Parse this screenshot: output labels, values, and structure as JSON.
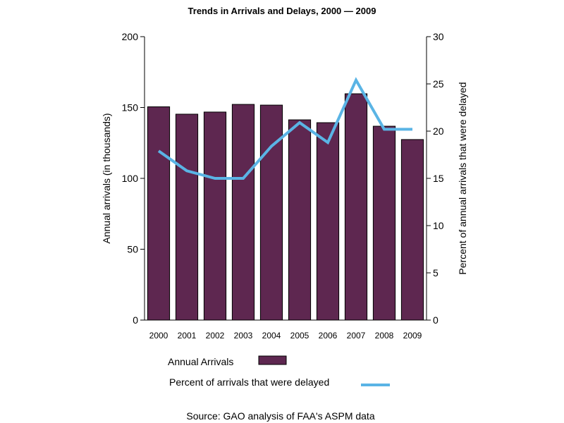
{
  "chart_data": {
    "type": "bar",
    "title": "Trends in Arrivals and Delays, 2000 — 2009",
    "categories": [
      "2000",
      "2001",
      "2002",
      "2003",
      "2004",
      "2005",
      "2006",
      "2007",
      "2008",
      "2009"
    ],
    "series": [
      {
        "name": "Annual Arrivals",
        "type": "bar",
        "axis": "left",
        "color": "#5e2750",
        "values": [
          150.5,
          145.3,
          146.8,
          152.2,
          151.7,
          141.3,
          139.3,
          159.7,
          136.8,
          127.4
        ]
      },
      {
        "name": "Percent of arrivals that were delayed",
        "type": "line",
        "axis": "right",
        "color": "#5ab4e5",
        "values": [
          17.9,
          15.8,
          15.0,
          15.0,
          18.4,
          20.9,
          18.8,
          25.4,
          20.2,
          20.2
        ]
      }
    ],
    "ylabel": "Annual arrivals (in thousands)",
    "ylim": [
      0,
      200
    ],
    "yticks": [
      0,
      50,
      100,
      150,
      200
    ],
    "y2label": "Percent of annual arrivals that were delayed",
    "y2lim": [
      0,
      30
    ],
    "y2ticks": [
      0,
      5,
      10,
      15,
      20,
      25,
      30
    ],
    "grid": false,
    "legend_position": "bottom",
    "legend": [
      "Annual Arrivals",
      "Percent of arrivals that were delayed"
    ],
    "source": "Source: GAO analysis of FAA's ASPM data"
  }
}
